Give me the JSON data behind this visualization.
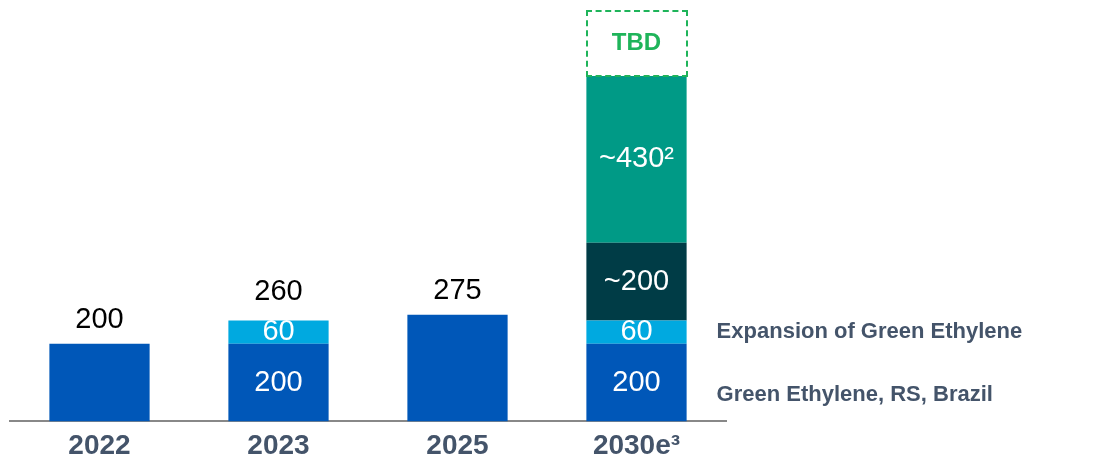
{
  "chart_data": {
    "type": "bar",
    "stacked": true,
    "categories": [
      "2022",
      "2023",
      "2025",
      "2030e³"
    ],
    "series": [
      {
        "name": "Green Ethylene, RS, Brazil",
        "color": "#0057b8",
        "values": [
          200,
          200,
          275,
          200
        ],
        "value_labels": [
          "200",
          "200",
          "275",
          "200"
        ]
      },
      {
        "name": "Expansion of Green Ethylene",
        "color": "#00a9e0",
        "values": [
          null,
          60,
          null,
          60
        ],
        "value_labels": [
          null,
          "60",
          null,
          "60"
        ]
      },
      {
        "color": "#003c46",
        "values": [
          null,
          null,
          null,
          200
        ],
        "value_labels": [
          null,
          null,
          null,
          "~200"
        ]
      },
      {
        "color": "#009a86",
        "values": [
          null,
          null,
          null,
          430
        ],
        "value_labels": [
          null,
          null,
          null,
          "~430²"
        ]
      }
    ],
    "totals": [
      null,
      "260",
      null,
      null
    ],
    "annotations": [
      "TBD"
    ],
    "ylim": [
      0,
      1060
    ],
    "tick_labels": "x",
    "grid": false,
    "legend": "right"
  }
}
